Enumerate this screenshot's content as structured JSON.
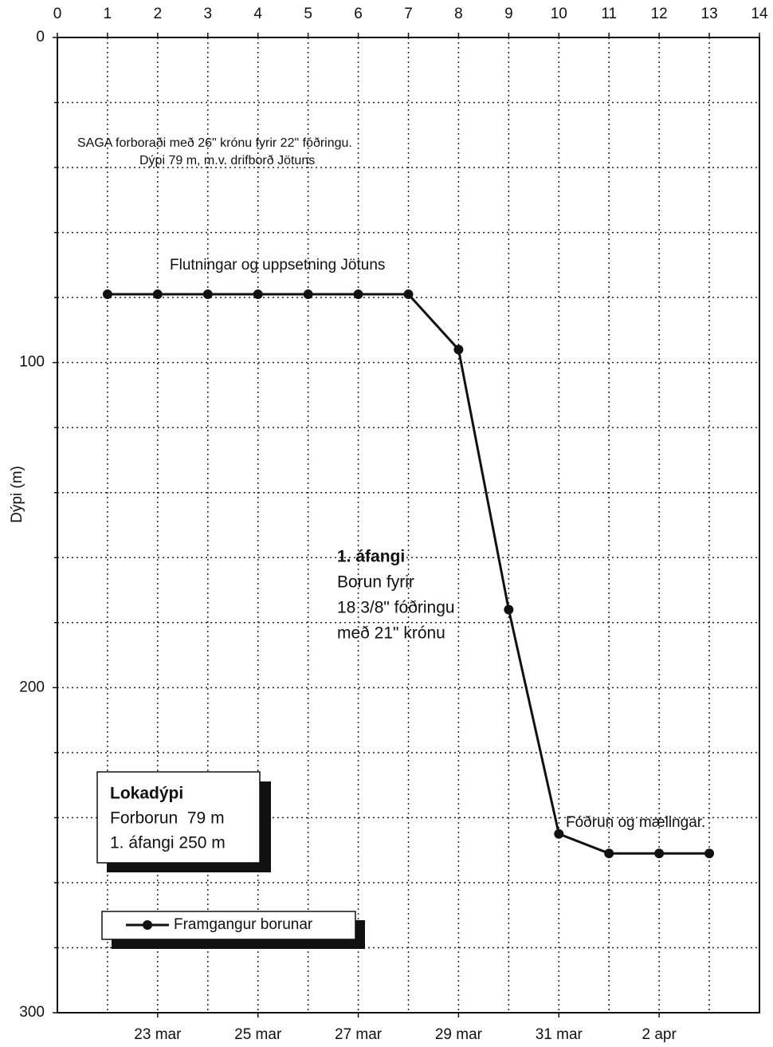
{
  "chart_data": {
    "type": "line",
    "ylabel": "Dýpi (m)",
    "x": [
      1,
      2,
      3,
      4,
      5,
      6,
      7,
      8,
      9,
      10,
      11,
      12,
      13
    ],
    "series": [
      {
        "name": "Framgangur borunar",
        "color": "#111111",
        "values": [
          79,
          79,
          79,
          79,
          79,
          79,
          79,
          96,
          176,
          245,
          251,
          251,
          251
        ]
      }
    ],
    "xlim": [
      0,
      14
    ],
    "xticks": [
      0,
      1,
      2,
      3,
      4,
      5,
      6,
      7,
      8,
      9,
      10,
      11,
      12,
      13,
      14
    ],
    "x2ticks": [
      {
        "value": 2,
        "label": "23 mar"
      },
      {
        "value": 4,
        "label": "25 mar"
      },
      {
        "value": 6,
        "label": "27 mar"
      },
      {
        "value": 8,
        "label": "29 mar"
      },
      {
        "value": 10,
        "label": "31 mar"
      },
      {
        "value": 12,
        "label": "2 apr"
      }
    ],
    "ylim": [
      0,
      300
    ],
    "yticks": [
      0,
      100,
      200,
      300
    ],
    "y_minor_ticks": [
      20,
      40,
      60,
      80,
      120,
      140,
      160,
      180,
      220,
      240,
      260,
      280
    ],
    "y_inverted": true,
    "grid": true,
    "annotations": [
      "SAGA forboraði með 26\" krónu fyrir 22\" fóðringu.",
      "Dýpi 79 m, m.v. drifborð Jötuns",
      "Flutningar og uppsetning Jötuns",
      "1. áfangi",
      "Borun fyrir",
      "18 3/8\" fóðringu",
      "með 21\" krónu",
      "Fóðrun og mælingar."
    ],
    "info_box": [
      "Lokadýpi",
      "Forborun  79 m",
      "1. áfangi 250 m"
    ]
  }
}
